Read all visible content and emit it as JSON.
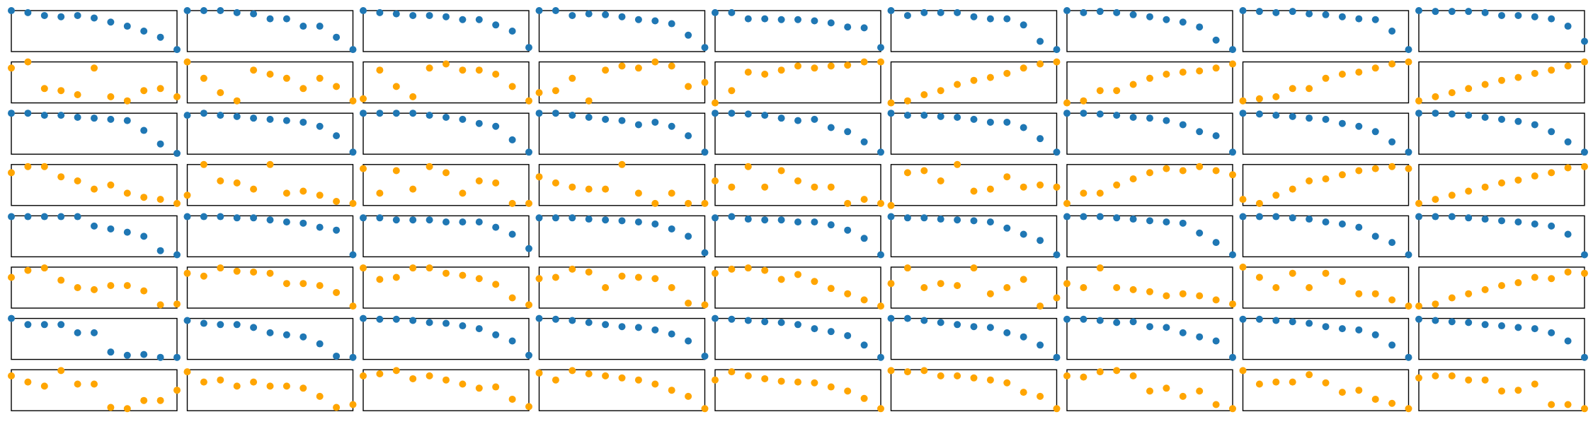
{
  "colors": {
    "blue": "#1f77b4",
    "orange": "#ffa500",
    "frame": "#000000",
    "background": "#ffffff"
  },
  "chart_data": {
    "type": "scatter",
    "layout": {
      "rows": 8,
      "cols": 9,
      "axes_visible": false,
      "grid": false,
      "legend": "none"
    },
    "x": [
      0,
      1,
      2,
      3,
      4,
      5,
      6,
      7,
      8,
      9,
      10
    ],
    "ylim": [
      0,
      1
    ],
    "rows": [
      {
        "color": "blue",
        "panels": [
          [
            1,
            0.95,
            0.88,
            0.85,
            0.88,
            0.82,
            0.72,
            0.62,
            0.5,
            0.35,
            0.05
          ],
          [
            1,
            1,
            1,
            0.95,
            0.92,
            0.8,
            0.8,
            0.62,
            0.62,
            0.35,
            0.05
          ],
          [
            1,
            0.95,
            0.92,
            0.88,
            0.88,
            0.85,
            0.78,
            0.78,
            0.65,
            0.5,
            0.1
          ],
          [
            1,
            1,
            0.88,
            0.92,
            0.9,
            0.85,
            0.78,
            0.75,
            0.68,
            0.4,
            0.1
          ],
          [
            0.95,
            0.95,
            0.8,
            0.8,
            0.78,
            0.78,
            0.75,
            0.7,
            0.6,
            0.58,
            0.1
          ],
          [
            1,
            0.88,
            0.95,
            0.95,
            0.95,
            0.85,
            0.8,
            0.8,
            0.65,
            0.25,
            0.05
          ],
          [
            1,
            0.95,
            0.98,
            0.95,
            0.9,
            0.85,
            0.78,
            0.72,
            0.6,
            0.28,
            0.05
          ],
          [
            1,
            0.98,
            0.95,
            0.98,
            0.92,
            0.9,
            0.85,
            0.8,
            0.78,
            0.5,
            0.05
          ],
          [
            1,
            0.98,
            0.98,
            0.98,
            0.95,
            0.88,
            0.88,
            0.85,
            0.8,
            0.62,
            0.25
          ]
        ]
      },
      {
        "color": "orange",
        "panels": [
          [
            0.85,
            1,
            0.35,
            0.3,
            0.2,
            0.85,
            0.15,
            0.05,
            0.3,
            0.35,
            0.15
          ],
          [
            1,
            0.6,
            0.25,
            0.05,
            0.8,
            0.7,
            0.6,
            0.35,
            0.6,
            0.4,
            0.05
          ],
          [
            0.1,
            0.8,
            0.4,
            0.15,
            0.85,
            0.95,
            0.8,
            0.8,
            0.7,
            0.4,
            0.05
          ],
          [
            0.25,
            0.3,
            0.6,
            0.05,
            0.8,
            0.9,
            0.85,
            1,
            0.9,
            0.4,
            0.5
          ],
          [
            0,
            0.3,
            0.75,
            0.7,
            0.8,
            0.9,
            0.85,
            0.9,
            0.92,
            1,
            1
          ],
          [
            0,
            0.05,
            0.2,
            0.3,
            0.45,
            0.55,
            0.62,
            0.72,
            0.85,
            0.95,
            1
          ],
          [
            0,
            0.05,
            0.3,
            0.3,
            0.45,
            0.6,
            0.7,
            0.75,
            0.78,
            0.85,
            0.95
          ],
          [
            0.05,
            0.1,
            0.15,
            0.35,
            0.35,
            0.6,
            0.7,
            0.75,
            0.85,
            0.95,
            1
          ],
          [
            0.05,
            0.15,
            0.25,
            0.35,
            0.45,
            0.55,
            0.62,
            0.72,
            0.8,
            0.9,
            1
          ]
        ]
      },
      {
        "color": "blue",
        "panels": [
          [
            1,
            1,
            0.95,
            0.95,
            0.9,
            0.88,
            0.85,
            0.82,
            0.58,
            0.25,
            0.02
          ],
          [
            0.95,
            1,
            0.95,
            0.92,
            0.88,
            0.85,
            0.82,
            0.78,
            0.68,
            0.45,
            0.05
          ],
          [
            1,
            1,
            1,
            1,
            0.95,
            0.9,
            0.85,
            0.75,
            0.68,
            0.35,
            0.05
          ],
          [
            1,
            1,
            0.95,
            0.9,
            0.85,
            0.82,
            0.72,
            0.78,
            0.68,
            0.45,
            0.05
          ],
          [
            1,
            1,
            0.98,
            0.95,
            0.88,
            0.82,
            0.85,
            0.65,
            0.55,
            0.3,
            0.05
          ],
          [
            1,
            0.95,
            0.95,
            0.92,
            0.9,
            0.85,
            0.78,
            0.78,
            0.65,
            0.38,
            0.05
          ],
          [
            1,
            1,
            0.98,
            0.95,
            0.9,
            0.88,
            0.82,
            0.72,
            0.55,
            0.45,
            0.05
          ],
          [
            1,
            0.98,
            0.95,
            0.92,
            0.88,
            0.85,
            0.75,
            0.68,
            0.55,
            0.3,
            0.05
          ],
          [
            1,
            1,
            0.98,
            0.95,
            0.9,
            0.85,
            0.8,
            0.72,
            0.55,
            0.3,
            0.05
          ]
        ]
      },
      {
        "color": "orange",
        "panels": [
          [
            0.8,
            0.95,
            0.95,
            0.7,
            0.6,
            0.4,
            0.5,
            0.3,
            0.2,
            0.15,
            0.05
          ],
          [
            0.25,
            1,
            0.6,
            0.55,
            0.4,
            1,
            0.3,
            0.35,
            0.25,
            0.1,
            0.05
          ],
          [
            0.9,
            0.3,
            0.85,
            0.4,
            0.95,
            0.8,
            0.3,
            0.6,
            0.55,
            0.05,
            0.05
          ],
          [
            0.7,
            0.55,
            0.45,
            0.4,
            0.4,
            1,
            0.3,
            0.05,
            0.3,
            0.05,
            0.05
          ],
          [
            0.6,
            0.45,
            0.95,
            0.45,
            0.85,
            0.6,
            0.45,
            0.45,
            0.05,
            0.15,
            0.05
          ],
          [
            0,
            0.8,
            0.85,
            0.6,
            1,
            0.35,
            0.4,
            0.7,
            0.45,
            0.5,
            0.45
          ],
          [
            0.05,
            0.3,
            0.3,
            0.5,
            0.65,
            0.8,
            0.9,
            0.85,
            0.95,
            0.85,
            0.75
          ],
          [
            0.15,
            0.05,
            0.25,
            0.4,
            0.6,
            0.65,
            0.75,
            0.85,
            0.9,
            0.95,
            0.9
          ],
          [
            0.05,
            0.15,
            0.25,
            0.35,
            0.45,
            0.55,
            0.62,
            0.72,
            0.8,
            0.92,
            0.95
          ]
        ]
      },
      {
        "color": "blue",
        "panels": [
          [
            0.98,
            0.98,
            0.98,
            0.98,
            0.98,
            0.75,
            0.68,
            0.6,
            0.5,
            0.15,
            0.05
          ],
          [
            0.98,
            0.98,
            0.98,
            0.95,
            0.95,
            0.9,
            0.85,
            0.82,
            0.72,
            0.65,
            0.05
          ],
          [
            0.95,
            0.95,
            0.9,
            0.9,
            0.9,
            0.85,
            0.85,
            0.85,
            0.72,
            0.55,
            0.2
          ],
          [
            0.95,
            0.95,
            0.95,
            0.92,
            0.9,
            0.88,
            0.85,
            0.8,
            0.68,
            0.5,
            0.1
          ],
          [
            0.95,
            0.98,
            0.92,
            0.9,
            0.9,
            0.85,
            0.85,
            0.78,
            0.65,
            0.45,
            0.05
          ],
          [
            0.98,
            0.95,
            0.95,
            0.92,
            0.9,
            0.88,
            0.85,
            0.7,
            0.55,
            0.4,
            0.05
          ],
          [
            0.98,
            0.98,
            0.98,
            0.95,
            0.92,
            0.88,
            0.85,
            0.82,
            0.58,
            0.35,
            0.05
          ],
          [
            0.98,
            0.98,
            0.98,
            0.95,
            0.92,
            0.85,
            0.8,
            0.72,
            0.5,
            0.35,
            0.05
          ],
          [
            0.98,
            0.98,
            0.98,
            0.95,
            0.92,
            0.88,
            0.85,
            0.8,
            0.75,
            0.55,
            0.05
          ]
        ]
      },
      {
        "color": "orange",
        "panels": [
          [
            0.75,
            0.92,
            0.98,
            0.68,
            0.5,
            0.45,
            0.55,
            0.55,
            0.42,
            0.08,
            0.1
          ],
          [
            0.85,
            0.78,
            0.98,
            0.9,
            0.88,
            0.85,
            0.6,
            0.6,
            0.55,
            0.38,
            0.05
          ],
          [
            0.98,
            0.7,
            0.75,
            0.98,
            0.98,
            0.85,
            0.8,
            0.72,
            0.58,
            0.25,
            0.08
          ],
          [
            0.72,
            0.75,
            0.95,
            0.88,
            0.5,
            0.78,
            0.75,
            0.72,
            0.5,
            0.12,
            0.08
          ],
          [
            0.85,
            0.95,
            0.98,
            0.92,
            0.7,
            0.82,
            0.65,
            0.48,
            0.35,
            0.2,
            0.05
          ],
          [
            0.6,
            0.98,
            0.5,
            0.6,
            0.55,
            0.98,
            0.35,
            0.5,
            0.7,
            0.05,
            0.25
          ],
          [
            0.6,
            0.5,
            0.98,
            0.5,
            0.45,
            0.4,
            0.3,
            0.35,
            0.3,
            0.2,
            0.1
          ],
          [
            1,
            0.75,
            0.5,
            0.85,
            0.5,
            0.85,
            0.65,
            0.35,
            0.35,
            0.2,
            0.05
          ],
          [
            0.05,
            0.1,
            0.25,
            0.35,
            0.45,
            0.55,
            0.62,
            0.75,
            0.72,
            0.88,
            0.85
          ]
        ]
      },
      {
        "color": "blue",
        "panels": [
          [
            1,
            0.85,
            0.85,
            0.85,
            0.65,
            0.65,
            0.18,
            0.1,
            0.12,
            0.05,
            0.05
          ],
          [
            0.95,
            0.88,
            0.85,
            0.85,
            0.78,
            0.65,
            0.6,
            0.55,
            0.38,
            0.08,
            0.05
          ],
          [
            1,
            0.98,
            0.98,
            0.95,
            0.9,
            0.88,
            0.82,
            0.75,
            0.6,
            0.45,
            0.1
          ],
          [
            1,
            0.98,
            0.95,
            0.9,
            0.85,
            0.8,
            0.78,
            0.72,
            0.62,
            0.45,
            0.08
          ],
          [
            1,
            0.98,
            0.95,
            0.92,
            0.9,
            0.85,
            0.75,
            0.68,
            0.58,
            0.35,
            0.05
          ],
          [
            1,
            1,
            0.95,
            0.9,
            0.85,
            0.8,
            0.78,
            0.65,
            0.55,
            0.35,
            0.05
          ],
          [
            0.98,
            0.98,
            0.95,
            0.9,
            0.92,
            0.8,
            0.78,
            0.65,
            0.55,
            0.45,
            0.05
          ],
          [
            0.98,
            0.98,
            0.95,
            0.92,
            0.88,
            0.8,
            0.75,
            0.72,
            0.6,
            0.35,
            0.05
          ],
          [
            0.98,
            0.95,
            0.92,
            0.9,
            0.85,
            0.82,
            0.78,
            0.75,
            0.65,
            0.45,
            0.05
          ]
        ]
      },
      {
        "color": "orange",
        "panels": [
          [
            0.85,
            0.7,
            0.6,
            0.98,
            0.65,
            0.65,
            0.08,
            0.05,
            0.25,
            0.25,
            0.5
          ],
          [
            0.95,
            0.7,
            0.75,
            0.6,
            0.7,
            0.6,
            0.6,
            0.55,
            0.35,
            0.08,
            0.15
          ],
          [
            0.85,
            0.9,
            0.98,
            0.78,
            0.85,
            0.75,
            0.65,
            0.55,
            0.58,
            0.28,
            0.1
          ],
          [
            0.92,
            0.75,
            0.98,
            0.9,
            0.85,
            0.8,
            0.75,
            0.65,
            0.5,
            0.35,
            0.05
          ],
          [
            0.75,
            0.95,
            0.85,
            0.78,
            0.72,
            0.7,
            0.68,
            0.58,
            0.48,
            0.3,
            0.05
          ],
          [
            0.98,
            0.95,
            0.98,
            0.85,
            0.85,
            0.8,
            0.75,
            0.68,
            0.45,
            0.35,
            0.05
          ],
          [
            0.85,
            0.82,
            0.95,
            0.98,
            0.85,
            0.48,
            0.55,
            0.35,
            0.48,
            0.15,
            0.05
          ],
          [
            0.98,
            0.65,
            0.7,
            0.7,
            0.88,
            0.68,
            0.45,
            0.5,
            0.28,
            0.18,
            0.05
          ],
          [
            0.8,
            0.85,
            0.85,
            0.75,
            0.75,
            0.48,
            0.5,
            0.65,
            0.15,
            0.15,
            0.05
          ]
        ]
      }
    ]
  }
}
